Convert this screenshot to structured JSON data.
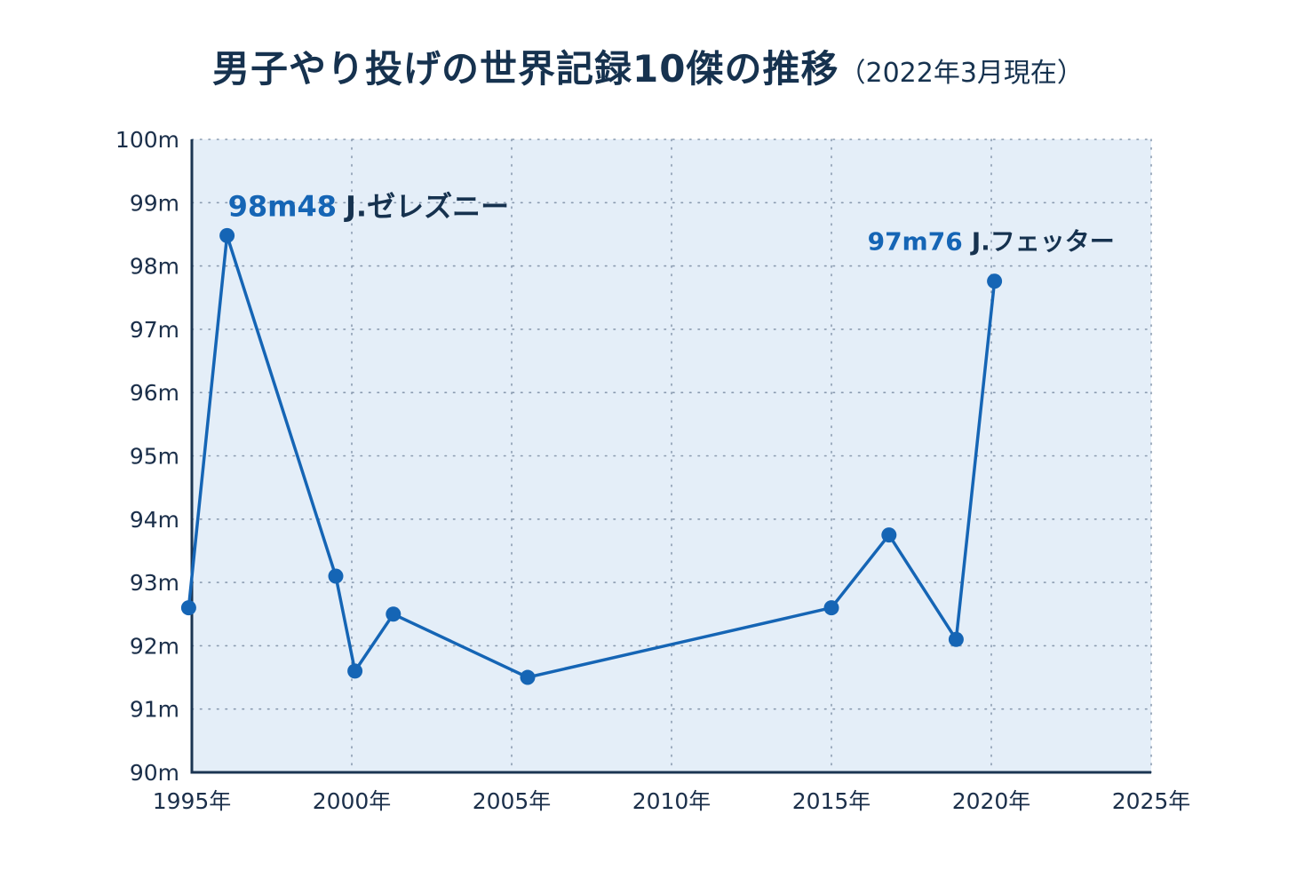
{
  "title": {
    "main": "男子やり投げの世界記録10傑の推移",
    "sub": "（2022年3月現在）"
  },
  "colors": {
    "line": "#1565b5",
    "plot_bg": "#e4eef8",
    "axis": "#1b3552",
    "grid": "#8a9bb0"
  },
  "chart_data": {
    "type": "line",
    "title": "男子やり投げの世界記録10傑の推移（2022年3月現在）",
    "xlim": [
      1995,
      2025
    ],
    "ylim": [
      90,
      100
    ],
    "x_ticks": [
      1995,
      2000,
      2005,
      2010,
      2015,
      2020,
      2025
    ],
    "x_tick_labels": [
      "1995年",
      "2000年",
      "2005年",
      "2010年",
      "2015年",
      "2020年",
      "2025年"
    ],
    "y_ticks": [
      90,
      91,
      92,
      93,
      94,
      95,
      96,
      97,
      98,
      99,
      100
    ],
    "y_tick_labels": [
      "90m",
      "91m",
      "92m",
      "93m",
      "94m",
      "95m",
      "96m",
      "97m",
      "98m",
      "99m",
      "100m"
    ],
    "grid": "dotted",
    "series": [
      {
        "points": [
          {
            "x": 1994.9,
            "y": 92.6
          },
          {
            "x": 1996.1,
            "y": 98.48
          },
          {
            "x": 1999.5,
            "y": 93.1
          },
          {
            "x": 2000.1,
            "y": 91.6
          },
          {
            "x": 2001.3,
            "y": 92.5
          },
          {
            "x": 2005.5,
            "y": 91.5
          },
          {
            "x": 2015.0,
            "y": 92.6
          },
          {
            "x": 2016.8,
            "y": 93.75
          },
          {
            "x": 2018.9,
            "y": 92.1
          },
          {
            "x": 2020.1,
            "y": 97.76
          }
        ]
      }
    ],
    "annotations": [
      {
        "value": "98m48",
        "name": "J.ゼレズニー",
        "x": 1996.1,
        "y": 98.48
      },
      {
        "value": "97m76",
        "name": "J.フェッター",
        "x": 2020.1,
        "y": 97.76
      }
    ]
  }
}
